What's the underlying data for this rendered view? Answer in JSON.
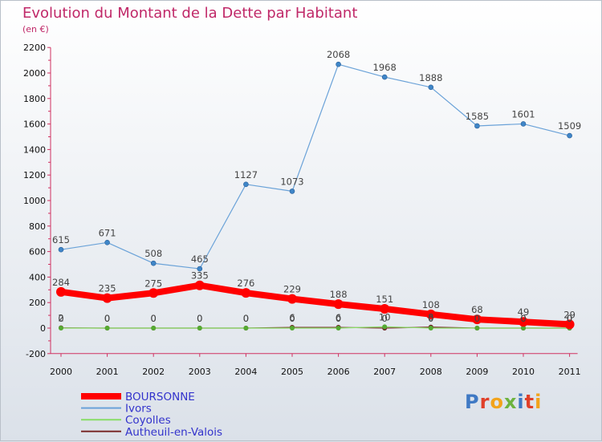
{
  "title": "Evolution du Montant de la Dette par Habitant",
  "subtitle": "(en €)",
  "logo_text": "Proxiti",
  "chart_data": {
    "type": "line",
    "title": "Evolution du Montant de la Dette par Habitant",
    "ylabel": "(en €)",
    "ylim": [
      -200,
      2200
    ],
    "yticks": [
      -200,
      0,
      200,
      400,
      600,
      800,
      1000,
      1200,
      1400,
      1600,
      1800,
      2000,
      2200
    ],
    "grid": false,
    "legend_position": "bottom-left",
    "categories": [
      "2000",
      "2001",
      "2002",
      "2003",
      "2004",
      "2005",
      "2006",
      "2007",
      "2008",
      "2009",
      "2010",
      "2011"
    ],
    "series": [
      {
        "name": "BOURSONNE",
        "color": "#ff0000",
        "values": [
          284,
          235,
          275,
          335,
          276,
          229,
          188,
          151,
          108,
          68,
          49,
          29
        ]
      },
      {
        "name": "Ivors",
        "color": "#6aa2d8",
        "values": [
          615,
          671,
          508,
          465,
          1127,
          1073,
          2068,
          1968,
          1888,
          1585,
          1601,
          1509
        ]
      },
      {
        "name": "Coyolles",
        "color": "#88dd66",
        "values": [
          0,
          0,
          0,
          0,
          0,
          0,
          0,
          10,
          0,
          0,
          0,
          0
        ]
      },
      {
        "name": "Autheuil-en-Valois",
        "color": "#7a2a2a",
        "values": [
          2,
          0,
          0,
          0,
          0,
          6,
          6,
          0,
          8,
          0,
          0,
          0
        ]
      }
    ]
  }
}
